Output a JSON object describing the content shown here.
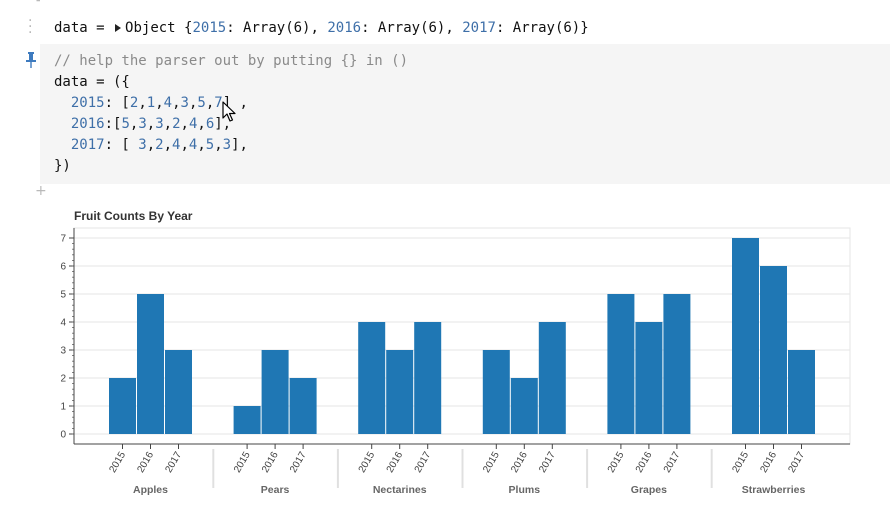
{
  "output": {
    "var_name": "data",
    "assign": "=",
    "object_label": "Object",
    "entries": [
      {
        "key": "2015",
        "value": "Array(6)"
      },
      {
        "key": "2016",
        "value": "Array(6)"
      },
      {
        "key": "2017",
        "value": "Array(6)"
      }
    ]
  },
  "code": {
    "comment": "// help the parser out by putting {} in ()",
    "open": "data = ({",
    "rows": [
      {
        "indent": "  ",
        "key": "2015",
        "sep": ": [",
        "values": [
          "2",
          "1",
          "4",
          "3",
          "5",
          "7"
        ],
        "close": "] ,"
      },
      {
        "indent": "  ",
        "key": "2016",
        "sep": ":[",
        "values": [
          "5",
          "3",
          "3",
          "2",
          "4",
          "6"
        ],
        "close": "],"
      },
      {
        "indent": "  ",
        "key": "2017",
        "sep": ": [ ",
        "values": [
          "3",
          "2",
          "4",
          "4",
          "5",
          "3"
        ],
        "close": "],"
      }
    ],
    "close_line": "})"
  },
  "colors": {
    "bar": "#1f77b4",
    "grid": "#e5e5e5",
    "number": "#3e6fa8",
    "comment": "#8a8a8a"
  },
  "chart_data": {
    "type": "bar",
    "title": "Fruit Counts By Year",
    "categories": [
      "Apples",
      "Pears",
      "Nectarines",
      "Plums",
      "Grapes",
      "Strawberries"
    ],
    "subcategories": [
      "2015",
      "2016",
      "2017"
    ],
    "series": [
      {
        "name": "2015",
        "values": [
          2,
          1,
          4,
          3,
          5,
          7
        ]
      },
      {
        "name": "2016",
        "values": [
          5,
          3,
          3,
          2,
          4,
          6
        ]
      },
      {
        "name": "2017",
        "values": [
          3,
          2,
          4,
          4,
          5,
          3
        ]
      }
    ],
    "ylim": [
      0,
      7.3
    ],
    "yticks": [
      0,
      1,
      2,
      3,
      4,
      5,
      6,
      7
    ],
    "grid": true,
    "xlabel": "",
    "ylabel": ""
  }
}
